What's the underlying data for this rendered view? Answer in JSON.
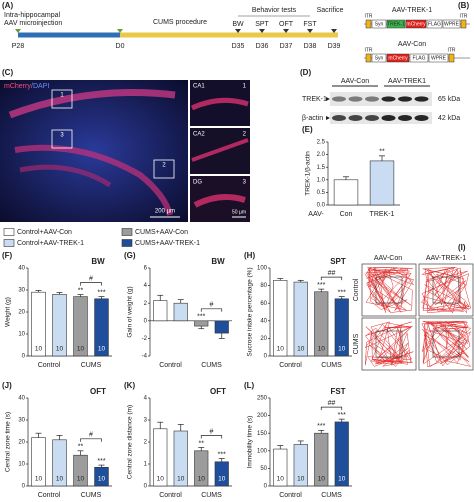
{
  "panels": {
    "A": {
      "label": "(A)",
      "injection": [
        "Intra-hippocampal",
        "AAV microinjection"
      ],
      "phase": "CUMS procedure",
      "tests": "Behavior tests",
      "end": "Sacrifice",
      "days": [
        "P28",
        "D0",
        "D35",
        "D36",
        "D37",
        "D38",
        "D39"
      ],
      "tests_list": [
        "BW",
        "SPT",
        "OFT",
        "FST"
      ]
    },
    "B": {
      "label": "(B)",
      "constructs": [
        {
          "name": "AAV-TREK-1",
          "elements": [
            "ITR",
            "Syn",
            "TREK-1",
            "mCherry",
            "FLAG",
            "WPRE",
            "ITR"
          ]
        },
        {
          "name": "AAV-Con",
          "elements": [
            "ITR",
            "Syn",
            "mCherry",
            "FLAG",
            "WPRE",
            "ITR"
          ]
        }
      ]
    },
    "C": {
      "label": "(C)",
      "stain": [
        "mCherry",
        "/DAPI"
      ],
      "boxes": [
        "1",
        "3",
        "2"
      ],
      "scale": "200 µm",
      "insets": [
        {
          "region": "CA1",
          "number": "1"
        },
        {
          "region": "CA2",
          "number": "2"
        },
        {
          "region": "DG",
          "number": "3"
        }
      ],
      "inset_scale": "50 µm"
    },
    "D": {
      "label": "(D)",
      "lanes": [
        "AAV-Con",
        "AAV-TREK1"
      ],
      "bands": [
        {
          "name": "TREK-1",
          "size": "65 kDa"
        },
        {
          "name": "β-actin",
          "size": "42 kDa"
        }
      ]
    },
    "I": {
      "label": "(I)",
      "columns": [
        "AAV-Con",
        "AAV-TREK-1"
      ],
      "rows": [
        "Control",
        "CUMS"
      ]
    }
  },
  "legend": [
    {
      "name": "Control+AAV-Con",
      "color": "#ffffff"
    },
    {
      "name": "Control+AAV-TREK-1",
      "color": "#c9dcf2"
    },
    {
      "name": "CUMS+AAV-Con",
      "color": "#9c9c9c"
    },
    {
      "name": "CUMS+AAV-TREK-1",
      "color": "#1f4e9a"
    }
  ],
  "chart_data": [
    {
      "type": "bar",
      "panel": "(E)",
      "ylabel": "TREK-1/β-actin",
      "prefix": "AAV-",
      "categories": [
        "Con",
        "TREK-1"
      ],
      "values": [
        1.0,
        1.75
      ],
      "errors": [
        0.12,
        0.2
      ],
      "sig": [
        null,
        "**"
      ],
      "ylim": [
        0,
        2.5
      ],
      "yticks": [
        {
          "value": 0,
          "label": "0.0"
        },
        {
          "value": 0.5,
          "label": "0.5"
        },
        {
          "value": 1,
          "label": "1.0"
        },
        {
          "value": 1.5,
          "label": "1.5"
        },
        {
          "value": 2,
          "label": "2.0"
        },
        {
          "value": 2.5,
          "label": "2.5"
        }
      ]
    },
    {
      "type": "bar",
      "panel": "(F)",
      "title": "BW",
      "ylabel": "Weight (g)",
      "groups": [
        "Control",
        "CUMS"
      ],
      "values": [
        29,
        28,
        27,
        26
      ],
      "errors": [
        0.8,
        0.9,
        0.9,
        1.0
      ],
      "sig": [
        null,
        null,
        "**",
        "***"
      ],
      "bracket": "#",
      "n_labels": [
        "10",
        "10",
        "10",
        "10"
      ],
      "ylim": [
        0,
        40
      ],
      "yticks": [
        0,
        10,
        20,
        30,
        40
      ]
    },
    {
      "type": "bar",
      "panel": "(G)",
      "title": "BW",
      "ylabel": "Gain of weight (g)",
      "groups": [
        "Control",
        "CUMS"
      ],
      "values": [
        2.3,
        2.0,
        -0.6,
        -1.4
      ],
      "errors": [
        0.6,
        0.4,
        0.3,
        0.6
      ],
      "sig": [
        null,
        null,
        "***",
        null
      ],
      "bracket": "#",
      "ylim": [
        -4,
        6
      ],
      "yticks": [
        -4,
        -2,
        0,
        2,
        4,
        6
      ]
    },
    {
      "type": "bar",
      "panel": "(H)",
      "title": "SPT",
      "ylabel": "Sucrose intake percentage (%)",
      "groups": [
        "Control",
        "CUMS"
      ],
      "values": [
        86,
        84,
        73,
        65
      ],
      "errors": [
        2,
        2,
        3,
        2.5
      ],
      "sig": [
        null,
        null,
        "***",
        "***"
      ],
      "bracket": "##",
      "n_labels": [
        "10",
        "10",
        "10",
        "10"
      ],
      "ylim": [
        0,
        100
      ],
      "yticks": [
        0,
        20,
        40,
        60,
        80,
        100
      ]
    },
    {
      "type": "bar",
      "panel": "(J)",
      "title": "OFT",
      "ylabel": "Central zone time (s)",
      "groups": [
        "Control",
        "CUMS"
      ],
      "values": [
        22,
        21,
        14,
        8.5
      ],
      "errors": [
        2,
        2,
        2,
        1
      ],
      "sig": [
        null,
        null,
        "**",
        "***"
      ],
      "bracket": "#",
      "n_labels": [
        "10",
        "10",
        "10",
        "10"
      ],
      "ylim": [
        0,
        40
      ],
      "yticks": [
        0,
        10,
        20,
        30,
        40
      ]
    },
    {
      "type": "bar",
      "panel": "(K)",
      "title": "OFT",
      "ylabel": "Central zone distance (m)",
      "groups": [
        "Control",
        "CUMS"
      ],
      "values": [
        2.6,
        2.5,
        1.6,
        1.1
      ],
      "errors": [
        0.3,
        0.3,
        0.15,
        0.15
      ],
      "sig": [
        null,
        null,
        "**",
        "***"
      ],
      "bracket": "#",
      "n_labels": [
        "10",
        "10",
        "10",
        "10"
      ],
      "ylim": [
        0,
        4
      ],
      "yticks": [
        0,
        1,
        2,
        3,
        4
      ]
    },
    {
      "type": "bar",
      "panel": "(L)",
      "title": "FST",
      "ylabel": "Immobility time (s)",
      "groups": [
        "Control",
        "CUMS"
      ],
      "values": [
        105,
        118,
        150,
        182
      ],
      "errors": [
        10,
        10,
        8,
        8
      ],
      "sig": [
        null,
        null,
        "***",
        "***"
      ],
      "bracket": "##",
      "n_labels": [
        "10",
        "10",
        "10",
        "10"
      ],
      "ylim": [
        0,
        250
      ],
      "yticks": [
        0,
        50,
        100,
        150,
        200,
        250
      ]
    }
  ]
}
